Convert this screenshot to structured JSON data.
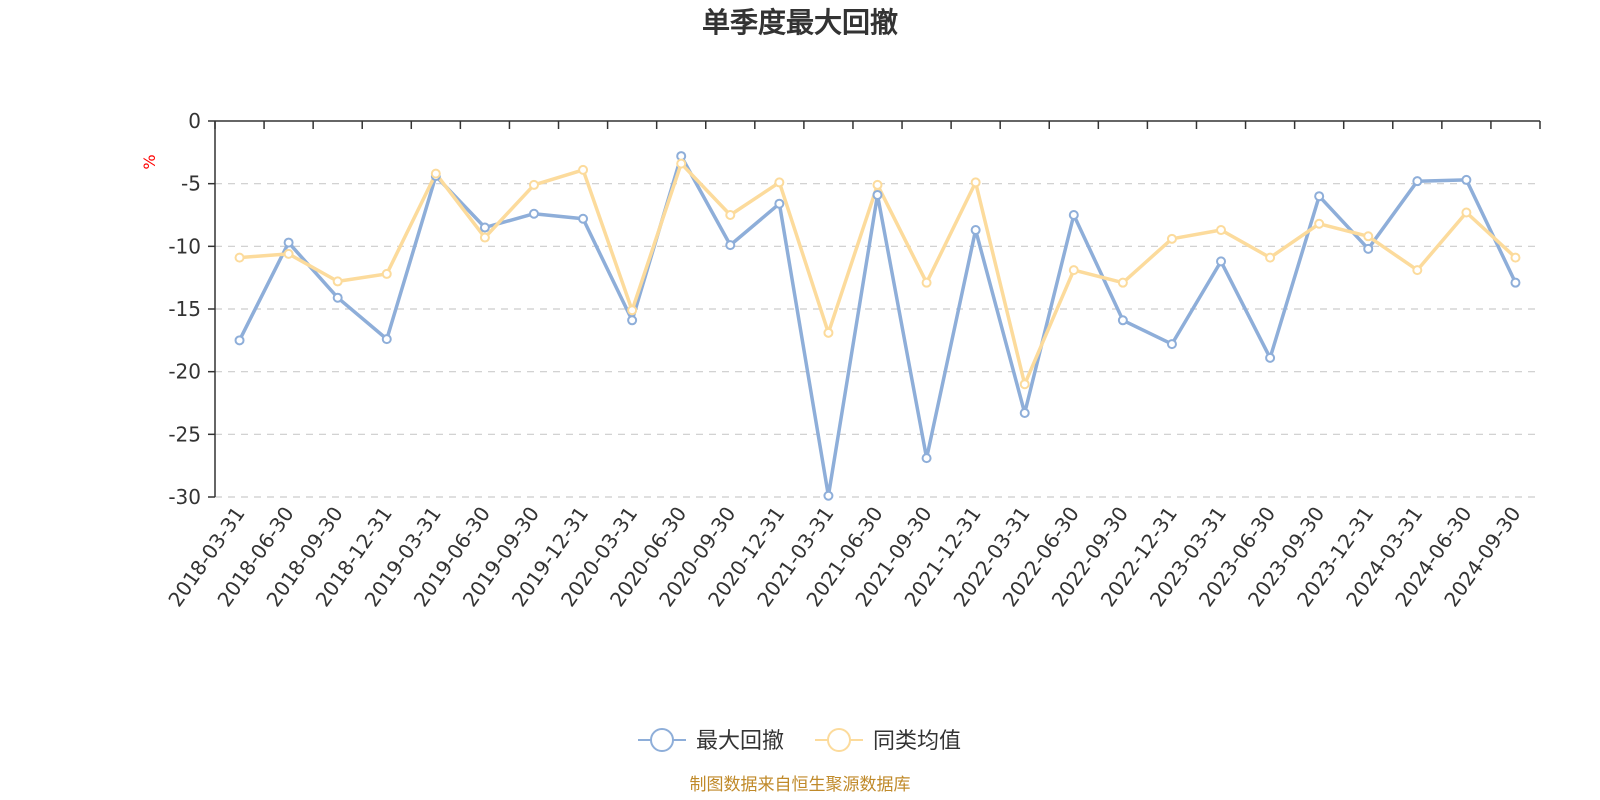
{
  "chart_data": {
    "type": "line",
    "title": "单季度最大回撤",
    "ylabel": "%",
    "xlabel": "",
    "ylim": [
      -30,
      0
    ],
    "yticks": [
      0,
      -5,
      -10,
      -15,
      -20,
      -25,
      -30
    ],
    "grid": true,
    "legend_position": "bottom-center",
    "categories": [
      "2018-03-31",
      "2018-06-30",
      "2018-09-30",
      "2018-12-31",
      "2019-03-31",
      "2019-06-30",
      "2019-09-30",
      "2019-12-31",
      "2020-03-31",
      "2020-06-30",
      "2020-09-30",
      "2020-12-31",
      "2021-03-31",
      "2021-06-30",
      "2021-09-30",
      "2021-12-31",
      "2022-03-31",
      "2022-06-30",
      "2022-09-30",
      "2022-12-31",
      "2023-03-31",
      "2023-06-30",
      "2023-09-30",
      "2023-12-31",
      "2024-03-31",
      "2024-06-30",
      "2024-09-30"
    ],
    "series": [
      {
        "name": "最大回撤",
        "color": "#8eaed9",
        "values": [
          -17.5,
          -9.7,
          -14.1,
          -17.4,
          -4.4,
          -8.5,
          -7.4,
          -7.8,
          -15.9,
          -2.8,
          -9.9,
          -6.6,
          -29.9,
          -5.9,
          -26.9,
          -8.7,
          -23.3,
          -7.5,
          -15.9,
          -17.8,
          -11.2,
          -18.9,
          -6.0,
          -10.2,
          -4.8,
          -4.7,
          -12.9
        ]
      },
      {
        "name": "同类均值",
        "color": "#fcdb9c",
        "values": [
          -10.9,
          -10.6,
          -12.8,
          -12.2,
          -4.2,
          -9.3,
          -5.1,
          -3.9,
          -15.1,
          -3.4,
          -7.5,
          -4.9,
          -16.9,
          -5.1,
          -12.9,
          -4.9,
          -21.0,
          -11.9,
          -12.9,
          -9.4,
          -8.7,
          -10.9,
          -8.2,
          -9.2,
          -11.9,
          -7.3,
          -10.9
        ]
      }
    ]
  },
  "colors": {
    "axis": "#333333",
    "grid": "#cccccc",
    "unit_label": "#ff0000",
    "source_text": "#c08a2a"
  },
  "source": "制图数据来自恒生聚源数据库"
}
